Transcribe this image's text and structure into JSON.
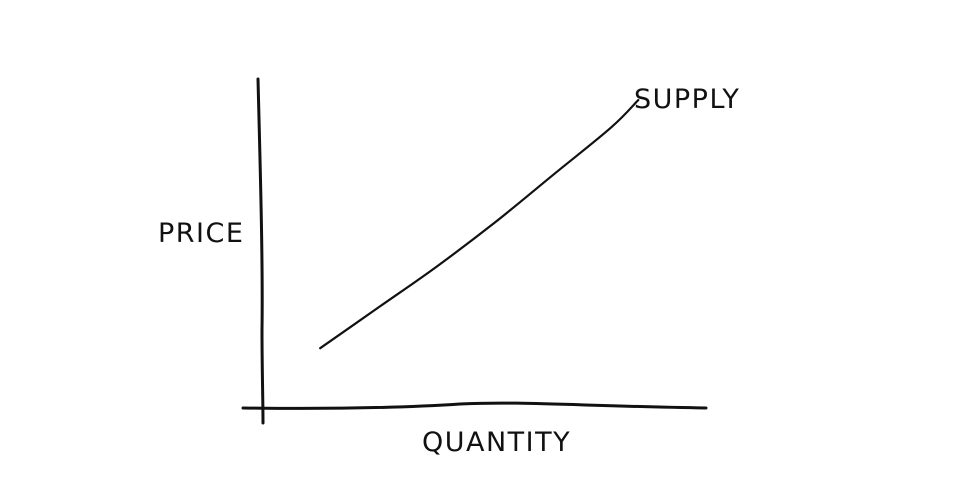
{
  "chart_data": {
    "type": "line",
    "title": "",
    "xlabel": "QUANTITY",
    "ylabel": "PRICE",
    "xlim": [
      0,
      10
    ],
    "ylim": [
      0,
      10
    ],
    "grid": false,
    "ticks": false,
    "series": [
      {
        "name": "SUPPLY",
        "label_position": "end",
        "x": [
          1.3,
          2.6,
          3.9,
          5.2,
          6.5,
          7.8,
          8.4
        ],
        "y": [
          1.7,
          2.9,
          4.1,
          5.4,
          6.8,
          8.2,
          9.0
        ]
      }
    ],
    "colors": {
      "ink": "#111111",
      "background": "#ffffff"
    }
  }
}
